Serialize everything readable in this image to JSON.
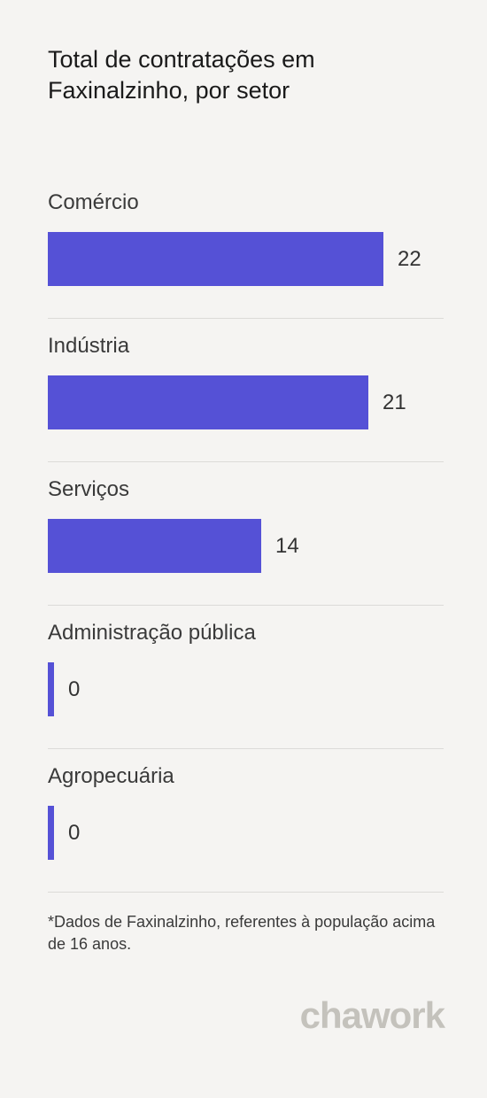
{
  "title": "Total de contratações em Faxinalzinho, por setor",
  "chart_data": {
    "type": "bar",
    "orientation": "horizontal",
    "categories": [
      "Comércio",
      "Indústria",
      "Serviços",
      "Administração pública",
      "Agropecuária"
    ],
    "values": [
      22,
      21,
      14,
      0,
      0
    ],
    "xlim": [
      0,
      22
    ],
    "bar_color": "#5551d6",
    "grid": false
  },
  "footnote": "*Dados de Faxinalzinho, referentes à população acima de 16 anos.",
  "logo_text": "chawork",
  "colors": {
    "background": "#f5f4f2",
    "bar": "#5551d6",
    "logo": "#c4c2bc"
  }
}
